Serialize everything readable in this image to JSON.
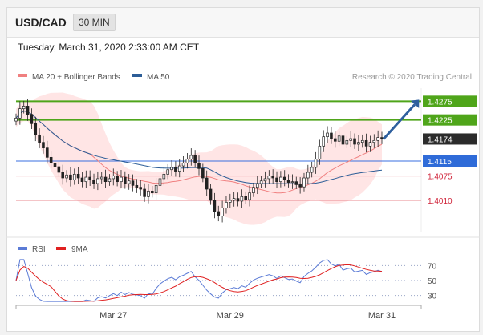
{
  "header": {
    "symbol": "USD/CAD",
    "timeframe": "30 MIN"
  },
  "datetime": "Tuesday, March 31, 2020 2:33:00 AM CET",
  "legend": [
    {
      "label": "MA 20 + Bollinger Bands",
      "color": "#f08080"
    },
    {
      "label": "MA 50",
      "color": "#2c5d97"
    }
  ],
  "credit": "Research © 2020 Trading Central",
  "colors": {
    "support": "#e8888f",
    "resistance": "#4fa51a",
    "pivot": "#3a6fe0",
    "last": "#333333",
    "arrow": "#2e5f9e",
    "candle_up": "#222222",
    "candle_down": "#222222",
    "band": "#ffe0e0"
  },
  "chart_data": [
    {
      "type": "candlestick",
      "title": "USD/CAD 30 MIN",
      "ylim": [
        1.392,
        1.431
      ],
      "x_ticks": [
        {
          "label": "Mar 27",
          "index": 25
        },
        {
          "label": "Mar 29",
          "index": 55
        },
        {
          "label": "Mar 31",
          "index": 94
        }
      ],
      "levels": [
        {
          "value": 1.4275,
          "label": "1.4275",
          "kind": "resistance"
        },
        {
          "value": 1.4225,
          "label": "1.4225",
          "kind": "resistance"
        },
        {
          "value": 1.4174,
          "label": "1.4174",
          "kind": "last"
        },
        {
          "value": 1.4115,
          "label": "1.4115",
          "kind": "pivot"
        },
        {
          "value": 1.4075,
          "label": "1.4075",
          "kind": "support"
        },
        {
          "value": 1.401,
          "label": "1.4010",
          "kind": "support"
        }
      ],
      "series": [
        {
          "name": "MA 20 + Bollinger Bands"
        },
        {
          "name": "MA 50"
        }
      ],
      "close": [
        1.423,
        1.4255,
        1.4262,
        1.424,
        1.4215,
        1.4185,
        1.4165,
        1.415,
        1.4125,
        1.411,
        1.41,
        1.4085,
        1.407,
        1.4078,
        1.4065,
        1.408,
        1.407,
        1.406,
        1.4072,
        1.4065,
        1.4055,
        1.4068,
        1.4072,
        1.406,
        1.4068,
        1.4075,
        1.406,
        1.4072,
        1.4055,
        1.4062,
        1.405,
        1.4045,
        1.404,
        1.402,
        1.4035,
        1.403,
        1.405,
        1.4068,
        1.408,
        1.4092,
        1.4098,
        1.4088,
        1.4102,
        1.411,
        1.412,
        1.413,
        1.411,
        1.4095,
        1.407,
        1.404,
        1.401,
        1.398,
        1.3968,
        1.399,
        1.4005,
        1.401,
        1.4015,
        1.4008,
        1.402,
        1.4012,
        1.403,
        1.4045,
        1.4055,
        1.4062,
        1.4068,
        1.4075,
        1.407,
        1.406,
        1.4072,
        1.4065,
        1.4058,
        1.406,
        1.4052,
        1.4046,
        1.407,
        1.4085,
        1.4098,
        1.412,
        1.4155,
        1.418,
        1.419,
        1.4175,
        1.4168,
        1.4182,
        1.416,
        1.417,
        1.4175,
        1.416,
        1.4165,
        1.417,
        1.4155,
        1.4165,
        1.417,
        1.4178,
        1.4174
      ]
    },
    {
      "type": "line",
      "title": "RSI",
      "ylim": [
        20,
        80
      ],
      "y_ticks": [
        70,
        50,
        30
      ],
      "series": [
        {
          "name": "RSI",
          "color": "#5b7bd6"
        },
        {
          "name": "9MA",
          "color": "#e02020"
        }
      ]
    }
  ]
}
